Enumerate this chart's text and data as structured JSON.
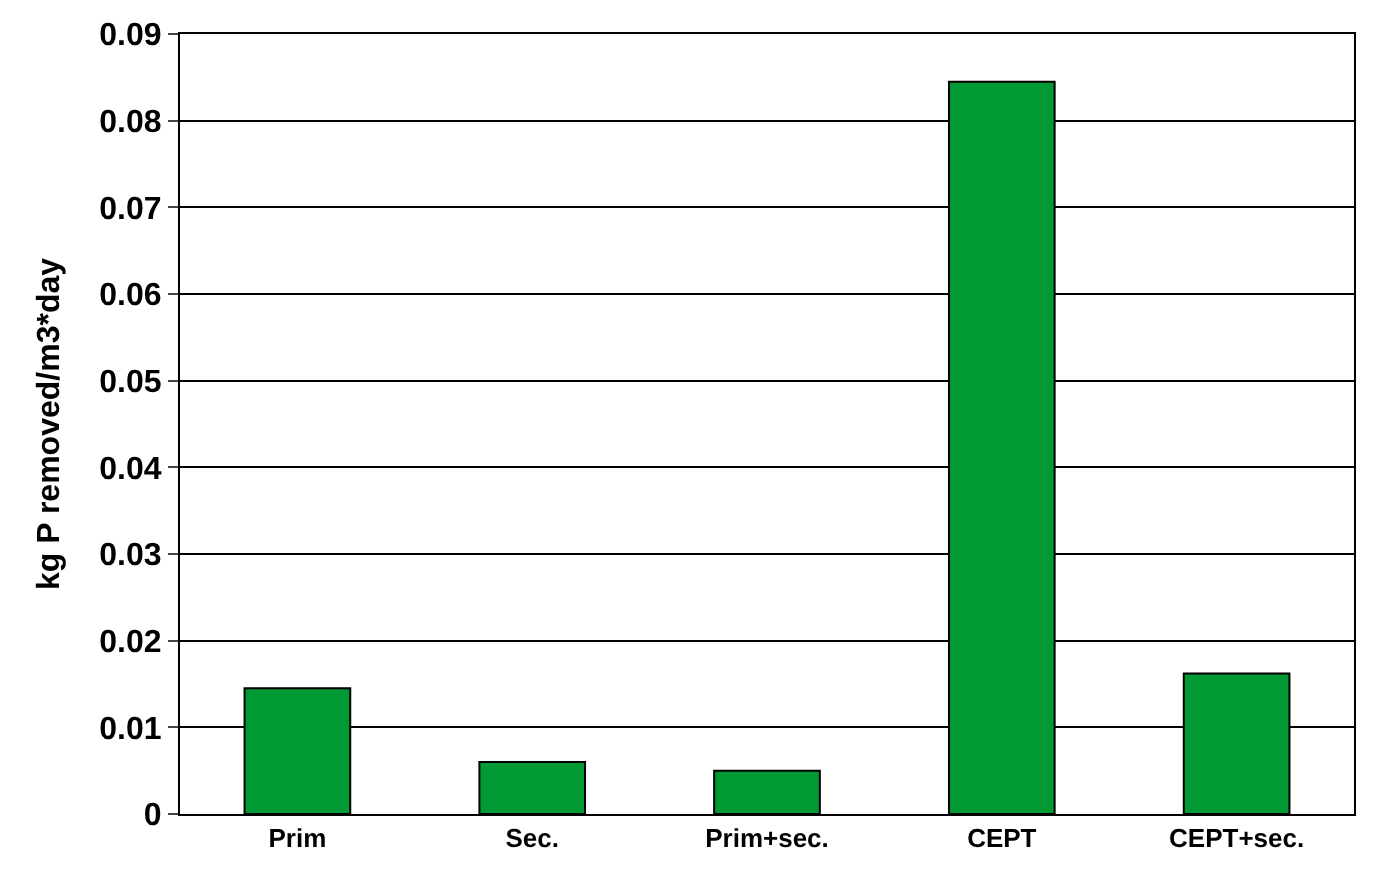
{
  "chart_data": {
    "type": "bar",
    "ylabel": "kg P removed/m3*day",
    "categories": [
      "Prim",
      "Sec.",
      "Prim+sec.",
      "CEPT",
      "CEPT+sec."
    ],
    "values": [
      0.0145,
      0.006,
      0.005,
      0.0845,
      0.0162
    ],
    "color": "#009933",
    "ylim": [
      0,
      0.09
    ],
    "yticks": [
      0,
      0.01,
      0.02,
      0.03,
      0.04,
      0.05,
      0.06,
      0.07,
      0.08,
      0.09
    ],
    "grid": "y"
  }
}
